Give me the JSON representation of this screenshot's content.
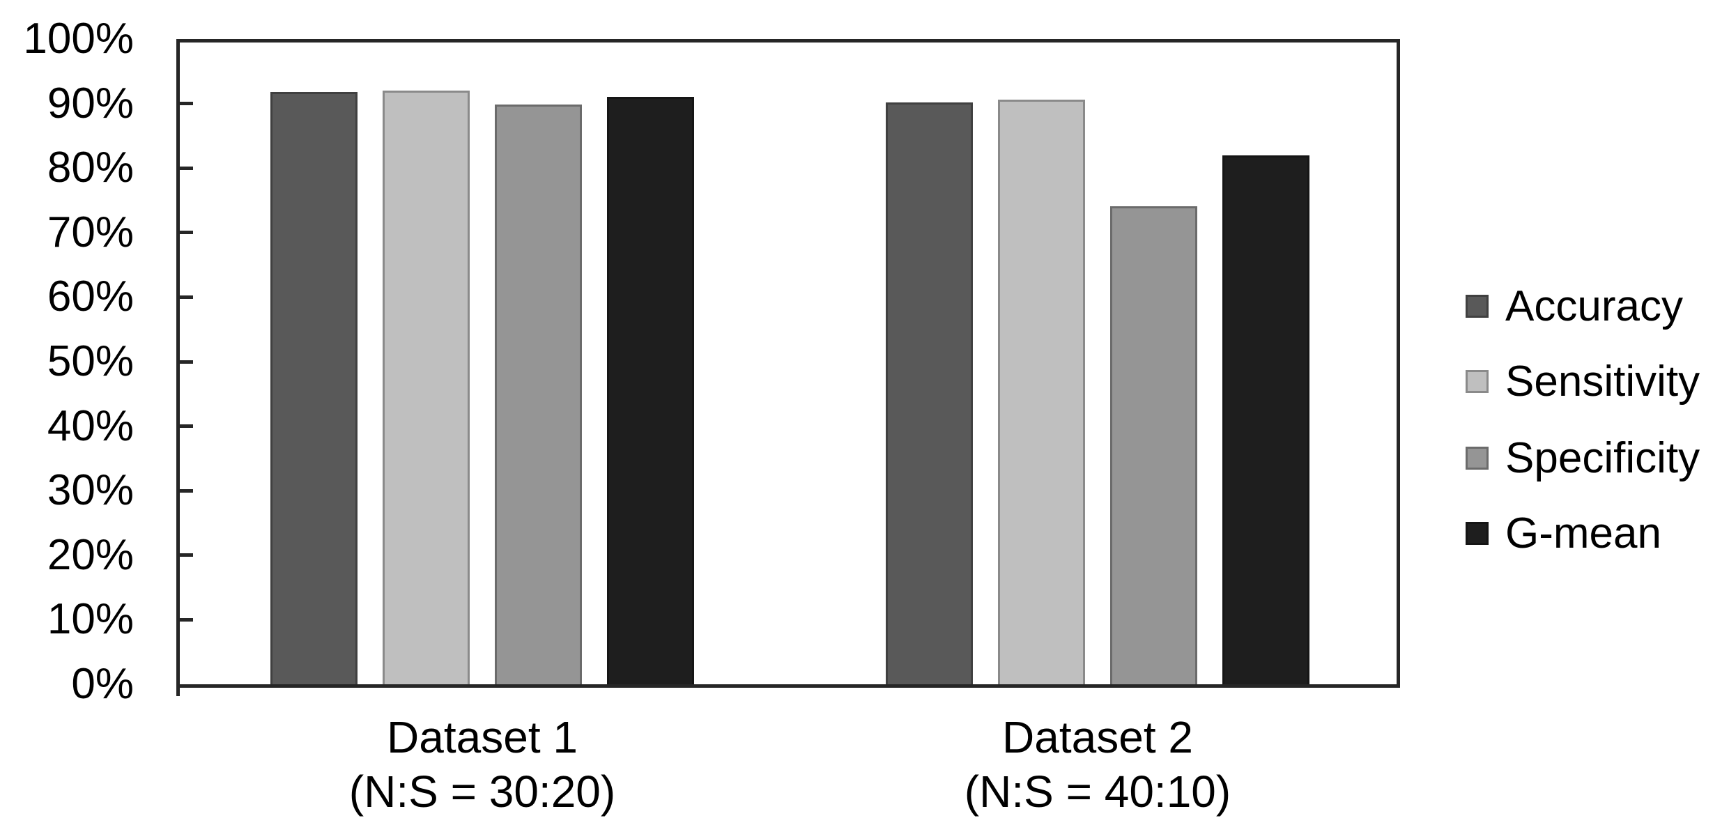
{
  "chart_data": {
    "type": "bar",
    "title": "",
    "categories": [
      {
        "label": "Dataset 1",
        "sublabel": "(N:S = 30:20)"
      },
      {
        "label": "Dataset 2",
        "sublabel": "(N:S = 40:10)"
      }
    ],
    "series": [
      {
        "name": "Accuracy",
        "color": "#595959",
        "values": [
          91.8,
          90.2
        ]
      },
      {
        "name": "Sensitivity",
        "color": "#bfbfbf",
        "values": [
          92.0,
          90.6
        ]
      },
      {
        "name": "Specificity",
        "color": "#959595",
        "values": [
          89.8,
          74.1
        ]
      },
      {
        "name": "G-mean",
        "color": "#1e1e1e",
        "values": [
          91.0,
          82.0
        ]
      }
    ],
    "y_axis": {
      "min": 0,
      "max": 100,
      "step": 10,
      "unit": "%",
      "tick_labels": [
        "0%",
        "10%",
        "20%",
        "30%",
        "40%",
        "50%",
        "60%",
        "70%",
        "80%",
        "90%",
        "100%"
      ]
    },
    "legend": {
      "position": "right",
      "entries": [
        "Accuracy",
        "Sensitivity",
        "Specificity",
        "G-mean"
      ]
    },
    "grid": false,
    "background": "#ffffff",
    "axis_color": "#262626",
    "text_color": "#000000"
  }
}
